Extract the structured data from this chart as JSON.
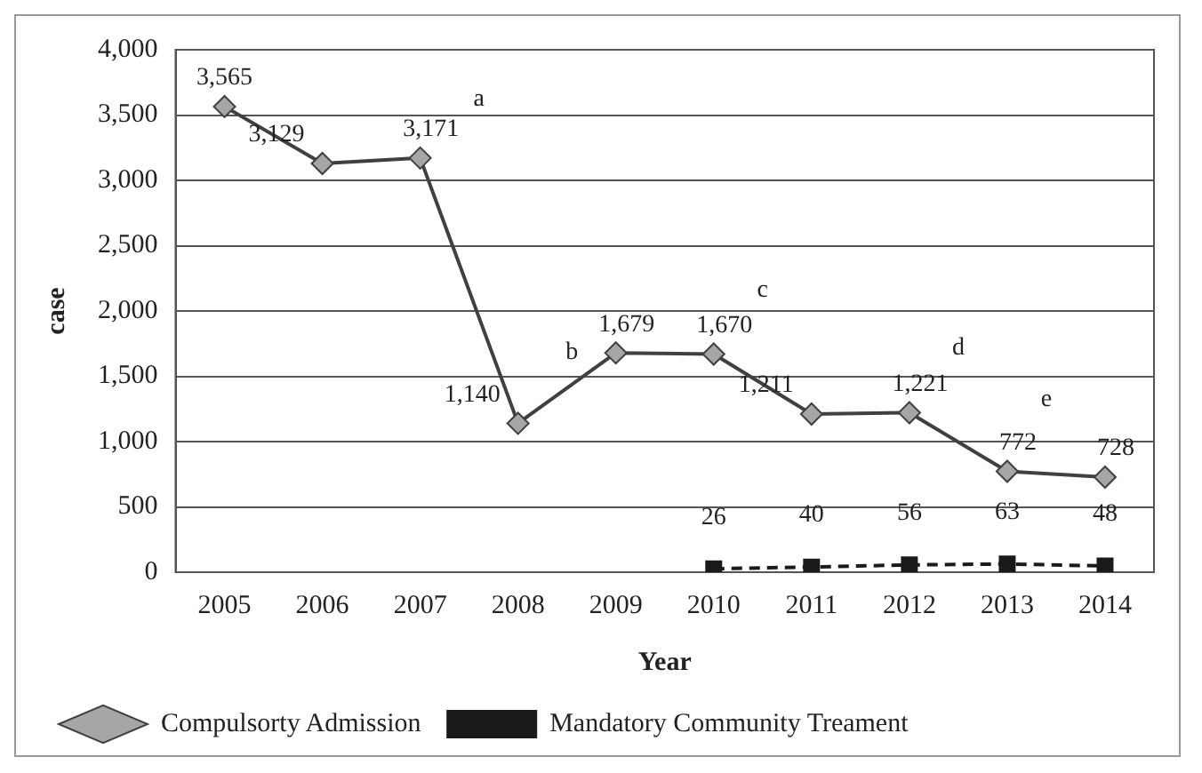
{
  "chart_data": {
    "type": "line",
    "xlabel": "Year",
    "ylabel": "case",
    "categories": [
      "2005",
      "2006",
      "2007",
      "2008",
      "2009",
      "2010",
      "2011",
      "2012",
      "2013",
      "2014"
    ],
    "series": [
      {
        "name": "Compulsorty Admission",
        "color": "#404040",
        "marker": "diamond",
        "line_style": "solid",
        "values": [
          3565,
          3129,
          3171,
          1140,
          1679,
          1670,
          1211,
          1221,
          772,
          728
        ],
        "value_labels": [
          "3,565",
          "3,129",
          "3,171",
          "1,140",
          "1,679",
          "1,670",
          "1,211",
          "1,221",
          "772",
          "728"
        ]
      },
      {
        "name": "Mandatory Community Treament",
        "color": "#1a1a1a",
        "marker": "square",
        "line_style": "dashed",
        "values": [
          null,
          null,
          null,
          null,
          null,
          26,
          40,
          56,
          63,
          48
        ],
        "value_labels": [
          null,
          null,
          null,
          null,
          null,
          "26",
          "40",
          "56",
          "63",
          "48"
        ]
      }
    ],
    "ylim": [
      0,
      4000
    ],
    "yticks": [
      {
        "value": 0,
        "label": "0"
      },
      {
        "value": 500,
        "label": "500"
      },
      {
        "value": 1000,
        "label": "1,000"
      },
      {
        "value": 1500,
        "label": "1,500"
      },
      {
        "value": 2000,
        "label": "2,000"
      },
      {
        "value": 2500,
        "label": "2,500"
      },
      {
        "value": 3000,
        "label": "3,000"
      },
      {
        "value": 3500,
        "label": "3,500"
      },
      {
        "value": 4000,
        "label": "4,000"
      }
    ],
    "grid": "y",
    "legend": "bottom",
    "annotations": [
      "a",
      "b",
      "c",
      "d",
      "e"
    ]
  }
}
